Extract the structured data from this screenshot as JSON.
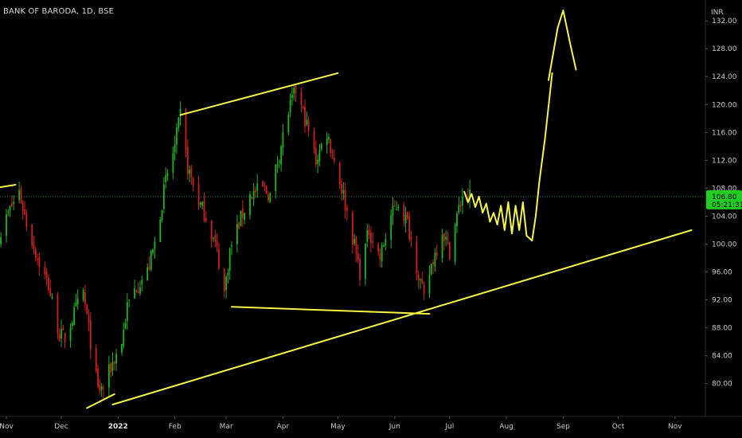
{
  "chart_data": {
    "type": "candlestick",
    "title": "BANK OF BARODA, 1D, BSE",
    "y_unit": "INR",
    "ylim": [
      77,
      133.5
    ],
    "y_ticks": [
      "132.00",
      "128.00",
      "124.00",
      "120.00",
      "116.00",
      "112.00",
      "108.00",
      "104.00",
      "100.00",
      "96.00",
      "92.00",
      "88.00",
      "84.00",
      "80.00"
    ],
    "x_range": [
      "2021-11-01",
      "2022-11-15"
    ],
    "x_ticks": [
      {
        "label": "Nov",
        "date": "2021-11-01"
      },
      {
        "label": "Dec",
        "date": "2021-12-01"
      },
      {
        "label": "2022",
        "date": "2022-01-01",
        "bold": true
      },
      {
        "label": "Feb",
        "date": "2022-02-01"
      },
      {
        "label": "Mar",
        "date": "2022-03-01"
      },
      {
        "label": "Apr",
        "date": "2022-04-01"
      },
      {
        "label": "May",
        "date": "2022-05-01"
      },
      {
        "label": "Jun",
        "date": "2022-06-01"
      },
      {
        "label": "Jul",
        "date": "2022-07-01"
      },
      {
        "label": "Aug",
        "date": "2022-08-01"
      },
      {
        "label": "Sep",
        "date": "2022-09-01"
      },
      {
        "label": "Oct",
        "date": "2022-10-01"
      },
      {
        "label": "Nov",
        "date": "2022-11-01"
      }
    ],
    "price_path": [
      [
        "2021-10-28",
        101
      ],
      [
        "2021-11-03",
        105
      ],
      [
        "2021-11-08",
        107.5
      ],
      [
        "2021-11-12",
        103
      ],
      [
        "2021-11-18",
        98
      ],
      [
        "2021-11-24",
        94
      ],
      [
        "2021-11-30",
        87
      ],
      [
        "2021-12-03",
        86.5
      ],
      [
        "2021-12-08",
        90
      ],
      [
        "2021-12-13",
        93
      ],
      [
        "2021-12-17",
        86
      ],
      [
        "2021-12-21",
        79
      ],
      [
        "2021-12-24",
        79.5
      ],
      [
        "2021-12-29",
        83
      ],
      [
        "2022-01-03",
        86
      ],
      [
        "2022-01-06",
        91
      ],
      [
        "2022-01-11",
        94
      ],
      [
        "2022-01-17",
        96
      ],
      [
        "2022-01-21",
        100
      ],
      [
        "2022-01-27",
        109
      ],
      [
        "2022-02-01",
        114
      ],
      [
        "2022-02-04",
        118.5
      ],
      [
        "2022-02-08",
        111
      ],
      [
        "2022-02-14",
        106
      ],
      [
        "2022-02-18",
        104
      ],
      [
        "2022-02-24",
        99
      ],
      [
        "2022-02-28",
        93
      ],
      [
        "2022-03-03",
        99
      ],
      [
        "2022-03-08",
        103
      ],
      [
        "2022-03-14",
        107
      ],
      [
        "2022-03-21",
        108
      ],
      [
        "2022-03-25",
        107
      ],
      [
        "2022-03-30",
        113
      ],
      [
        "2022-04-04",
        119
      ],
      [
        "2022-04-08",
        122
      ],
      [
        "2022-04-13",
        118
      ],
      [
        "2022-04-19",
        112
      ],
      [
        "2022-04-25",
        116
      ],
      [
        "2022-04-29",
        112
      ],
      [
        "2022-05-04",
        107
      ],
      [
        "2022-05-09",
        101
      ],
      [
        "2022-05-13",
        96
      ],
      [
        "2022-05-18",
        102
      ],
      [
        "2022-05-24",
        98
      ],
      [
        "2022-05-30",
        104
      ],
      [
        "2022-06-03",
        106
      ],
      [
        "2022-06-08",
        103
      ],
      [
        "2022-06-13",
        97
      ],
      [
        "2022-06-17",
        92
      ],
      [
        "2022-06-21",
        97
      ],
      [
        "2022-06-27",
        102
      ],
      [
        "2022-07-01",
        99
      ],
      [
        "2022-07-05",
        104
      ],
      [
        "2022-07-08",
        107
      ],
      [
        "2022-07-12",
        106.8
      ]
    ],
    "current_price": {
      "value": "106.80",
      "countdown": "05:21:31",
      "level": 106.8,
      "color": "#22cc22"
    },
    "annotations": {
      "color": "#f5f542",
      "trendlines": [
        {
          "from": [
            "2021-10-25",
            108
          ],
          "to": [
            "2021-11-06",
            108.5
          ]
        },
        {
          "from": [
            "2021-12-15",
            76.5
          ],
          "to": [
            "2021-12-30",
            78.5
          ]
        },
        {
          "from": [
            "2022-02-04",
            118.5
          ],
          "to": [
            "2022-05-01",
            124.5
          ]
        },
        {
          "from": [
            "2022-03-04",
            91
          ],
          "to": [
            "2022-06-20",
            90
          ]
        },
        {
          "from": [
            "2021-12-29",
            77
          ],
          "to": [
            "2022-11-10",
            102
          ]
        }
      ],
      "projection_path": [
        [
          "2022-07-09",
          107.5
        ],
        [
          "2022-07-11",
          106
        ],
        [
          "2022-07-13",
          107.2
        ],
        [
          "2022-07-15",
          105.3
        ],
        [
          "2022-07-17",
          106.8
        ],
        [
          "2022-07-19",
          104.5
        ],
        [
          "2022-07-21",
          105.8
        ],
        [
          "2022-07-23",
          103.2
        ],
        [
          "2022-07-25",
          104.5
        ],
        [
          "2022-07-27",
          102.8
        ],
        [
          "2022-07-29",
          105.5
        ],
        [
          "2022-07-31",
          102
        ],
        [
          "2022-08-02",
          106
        ],
        [
          "2022-08-04",
          101.5
        ],
        [
          "2022-08-06",
          105.5
        ],
        [
          "2022-08-08",
          102
        ],
        [
          "2022-08-10",
          106
        ],
        [
          "2022-08-12",
          101.2
        ],
        [
          "2022-08-15",
          100.5
        ],
        [
          "2022-08-17",
          104
        ],
        [
          "2022-08-19",
          109
        ],
        [
          "2022-08-22",
          115
        ],
        [
          "2022-08-26",
          124.5
        ]
      ],
      "arrow_head": [
        [
          "2022-08-24",
          123.5
        ],
        [
          "2022-08-29",
          131
        ],
        [
          "2022-09-01",
          133.5
        ],
        [
          "2022-09-05",
          128.5
        ],
        [
          "2022-09-08",
          125
        ]
      ]
    },
    "colors": {
      "up": "#18b818",
      "down": "#d41e1e",
      "background": "#000000",
      "axis_text": "#c8c8c8",
      "price_line": "#2e8b57"
    }
  }
}
